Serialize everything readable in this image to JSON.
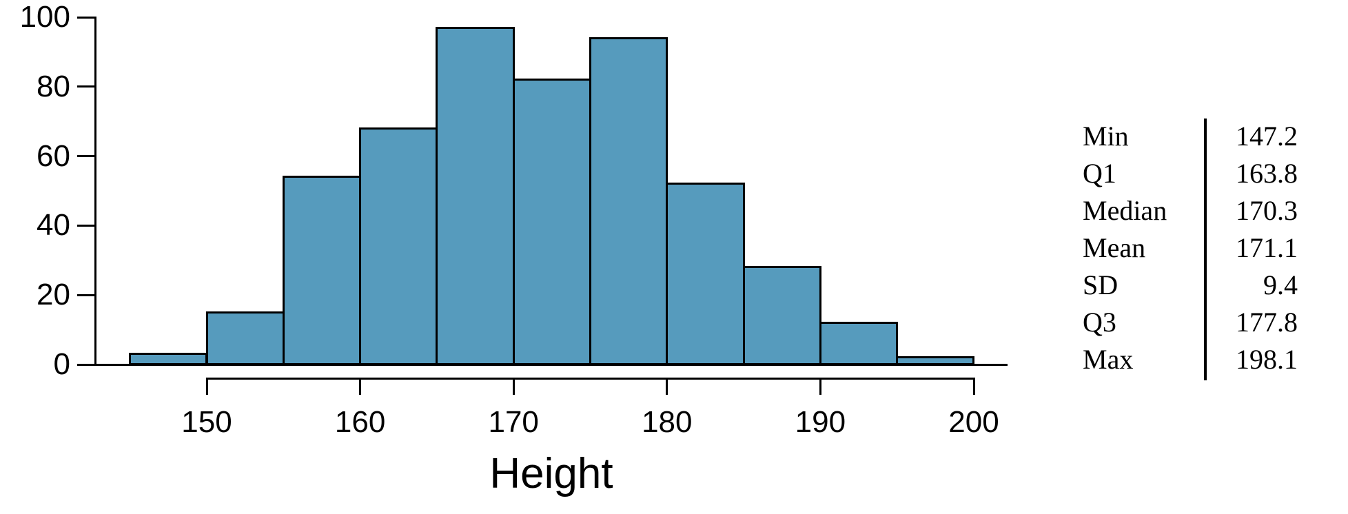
{
  "chart_data": {
    "type": "bar",
    "subtype": "histogram",
    "title": "",
    "xlabel": "Height",
    "ylabel": "",
    "bin_edges": [
      145,
      150,
      155,
      160,
      165,
      170,
      175,
      180,
      185,
      190,
      195,
      200
    ],
    "categories": [
      "145-150",
      "150-155",
      "155-160",
      "160-165",
      "165-170",
      "170-175",
      "175-180",
      "180-185",
      "185-190",
      "190-195",
      "195-200"
    ],
    "values": [
      3,
      15,
      54,
      68,
      97,
      82,
      94,
      52,
      28,
      12,
      2
    ],
    "x_ticks": [
      150,
      160,
      170,
      180,
      190,
      200
    ],
    "y_ticks": [
      0,
      20,
      40,
      60,
      80,
      100
    ],
    "xlim": [
      143.5,
      202.2
    ],
    "ylim": [
      0,
      100
    ],
    "grid": false,
    "legend": false,
    "bar_color": "#569BBD",
    "bar_border_color": "#000000",
    "axis_color": "#000000"
  },
  "stats_table": {
    "rows": [
      {
        "label": "Min",
        "value": "147.2"
      },
      {
        "label": "Q1",
        "value": "163.8"
      },
      {
        "label": "Median",
        "value": "170.3"
      },
      {
        "label": "Mean",
        "value": "171.1"
      },
      {
        "label": "SD",
        "value": "9.4"
      },
      {
        "label": "Q3",
        "value": "177.8"
      },
      {
        "label": "Max",
        "value": "198.1"
      }
    ]
  }
}
